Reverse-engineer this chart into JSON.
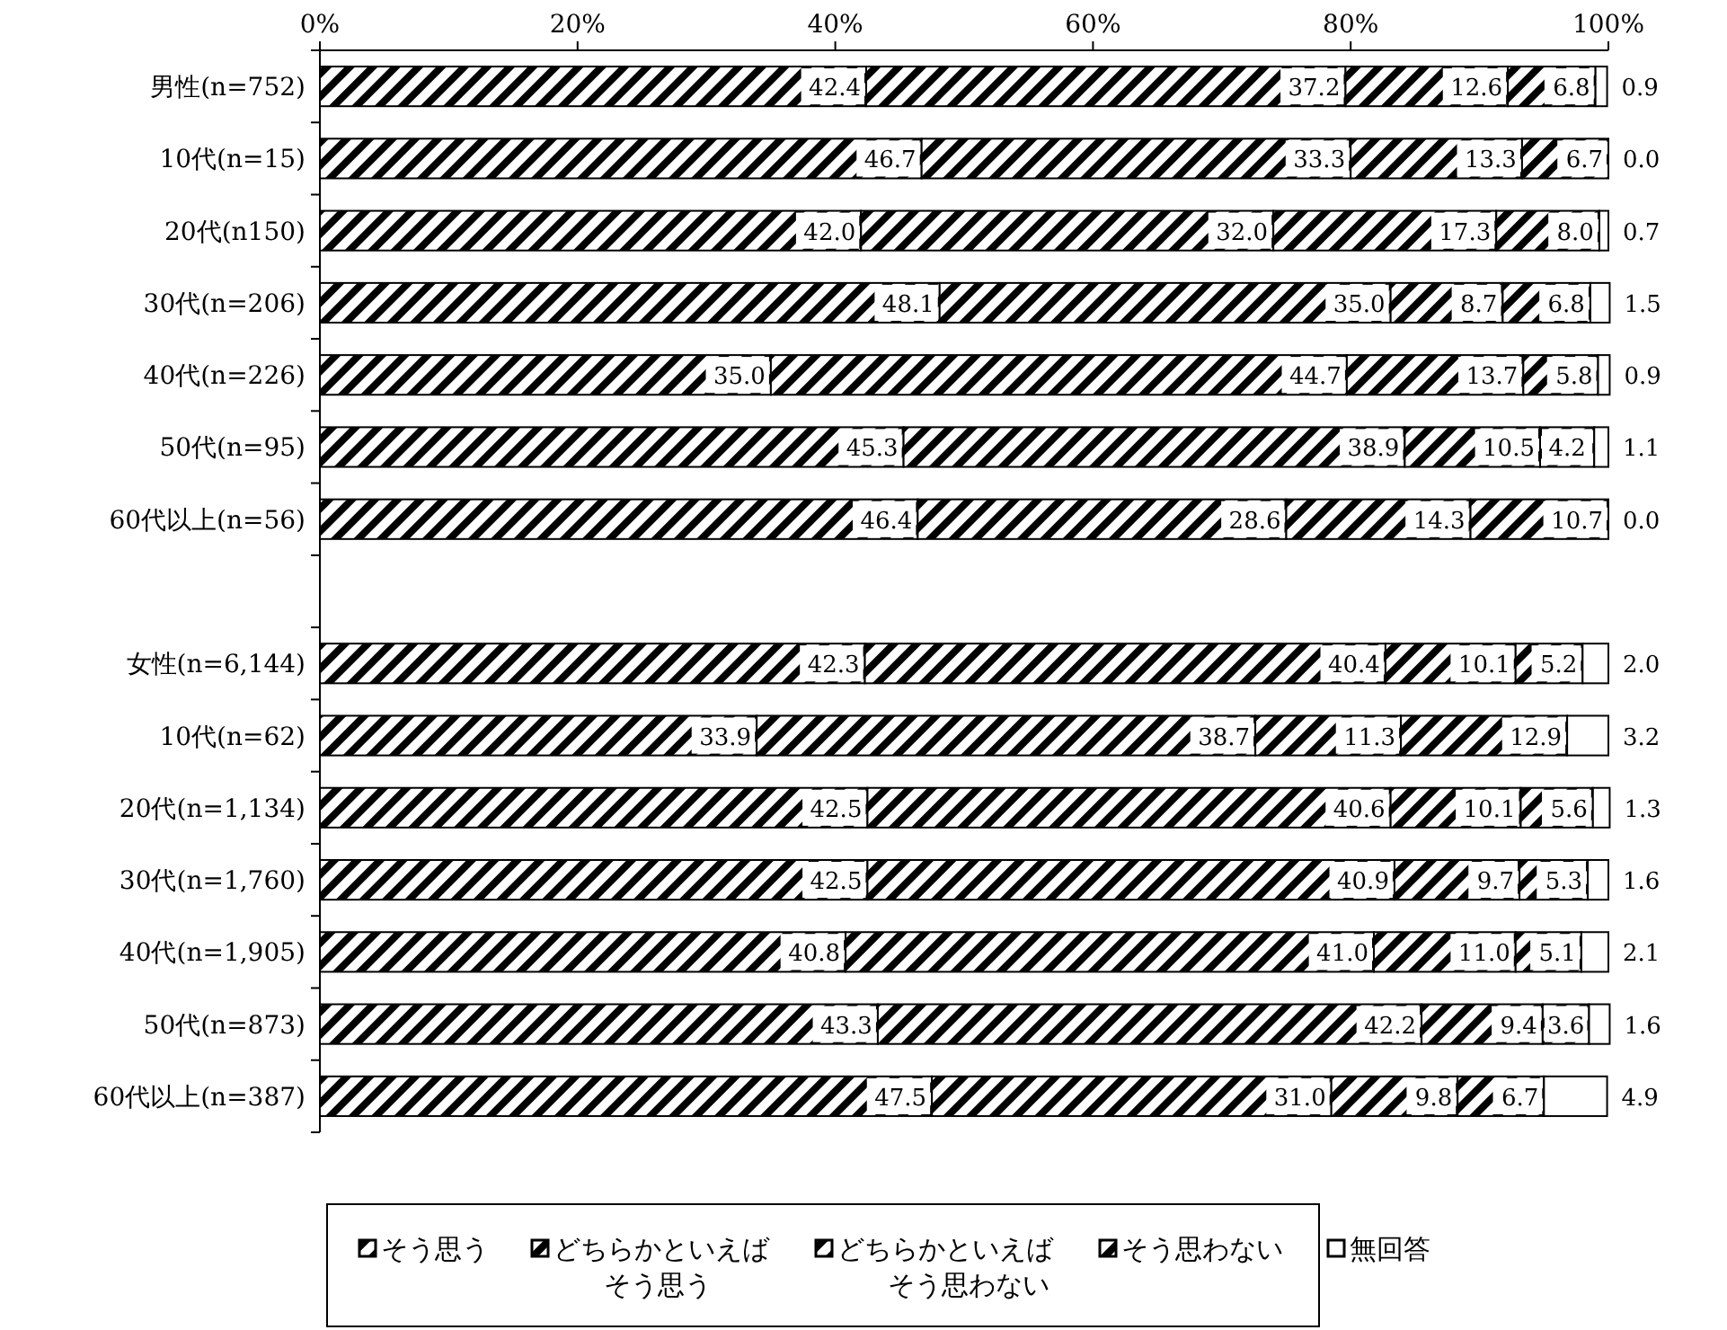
{
  "chart_data": {
    "type": "bar",
    "orientation": "horizontal",
    "stacked": true,
    "data_labels": true,
    "legend": "bottom",
    "grid": false,
    "categories": [
      "男性(n=752)",
      "10代(n=15)",
      "20代(n150)",
      "30代(n=206)",
      "40代(n=226)",
      "50代(n=95)",
      "60代以上(n=56)",
      null,
      "女性(n=6,144)",
      "10代(n=62)",
      "20代(n=1,134)",
      "30代(n=1,760)",
      "40代(n=1,905)",
      "50代(n=873)",
      "60代以上(n=387)"
    ],
    "xlim": [
      0,
      100
    ],
    "xticks": [
      {
        "value": 0,
        "label": "0%"
      },
      {
        "value": 20,
        "label": "20%"
      },
      {
        "value": 40,
        "label": "40%"
      },
      {
        "value": 60,
        "label": "60%"
      },
      {
        "value": 80,
        "label": "80%"
      },
      {
        "value": 100,
        "label": "100%"
      }
    ],
    "series": [
      {
        "name": "そう思う",
        "color": "#000000",
        "values": [
          42.4,
          46.7,
          42.0,
          48.1,
          35.0,
          45.3,
          46.4,
          null,
          42.3,
          33.9,
          42.5,
          42.5,
          40.8,
          43.3,
          47.5
        ],
        "value_labels": [
          "42.4",
          "46.7",
          "42.0",
          "48.1",
          "35.0",
          "45.3",
          "46.4",
          null,
          "42.3",
          "33.9",
          "42.5",
          "42.5",
          "40.8",
          "43.3",
          "47.5"
        ]
      },
      {
        "name": "どちらかといえばそう思う",
        "color": "#000000",
        "values": [
          37.2,
          33.3,
          32.0,
          35.0,
          44.7,
          38.9,
          28.6,
          null,
          40.4,
          38.7,
          40.6,
          40.9,
          41.0,
          42.2,
          31.0
        ],
        "value_labels": [
          "37.2",
          "33.3",
          "32.0",
          "35.0",
          "44.7",
          "38.9",
          "28.6",
          null,
          "40.4",
          "38.7",
          "40.6",
          "40.9",
          "41.0",
          "42.2",
          "31.0"
        ]
      },
      {
        "name": "どちらかといえばそう思わない",
        "color": "#000000",
        "values": [
          12.6,
          13.3,
          17.3,
          8.7,
          13.7,
          10.5,
          14.3,
          null,
          10.1,
          11.3,
          10.1,
          9.7,
          11.0,
          9.4,
          9.8
        ],
        "value_labels": [
          "12.6",
          "13.3",
          "17.3",
          "8.7",
          "13.7",
          "10.5",
          "14.3",
          null,
          "10.1",
          "11.3",
          "10.1",
          "9.7",
          "11.0",
          "9.4",
          "9.8"
        ]
      },
      {
        "name": "そう思わない",
        "color": "#000000",
        "values": [
          6.8,
          6.7,
          8.0,
          6.8,
          5.8,
          4.2,
          10.7,
          null,
          5.2,
          12.9,
          5.6,
          5.3,
          5.1,
          3.6,
          6.7
        ],
        "value_labels": [
          "6.8",
          "6.7",
          "8.0",
          "6.8",
          "5.8",
          "4.2",
          "10.7",
          null,
          "5.2",
          "12.9",
          "5.6",
          "5.3",
          "5.1",
          "3.6",
          "6.7"
        ]
      },
      {
        "name": "無回答",
        "color": "#ffffff",
        "values": [
          0.9,
          0.0,
          0.7,
          1.5,
          0.9,
          1.1,
          0.0,
          null,
          2.0,
          3.2,
          1.3,
          1.6,
          2.1,
          1.6,
          4.9
        ],
        "value_labels": [
          "0.9",
          "0.0",
          "0.7",
          "1.5",
          "0.9",
          "1.1",
          "0.0",
          null,
          "2.0",
          "3.2",
          "1.3",
          "1.6",
          "2.1",
          "1.6",
          "4.9"
        ]
      }
    ]
  }
}
